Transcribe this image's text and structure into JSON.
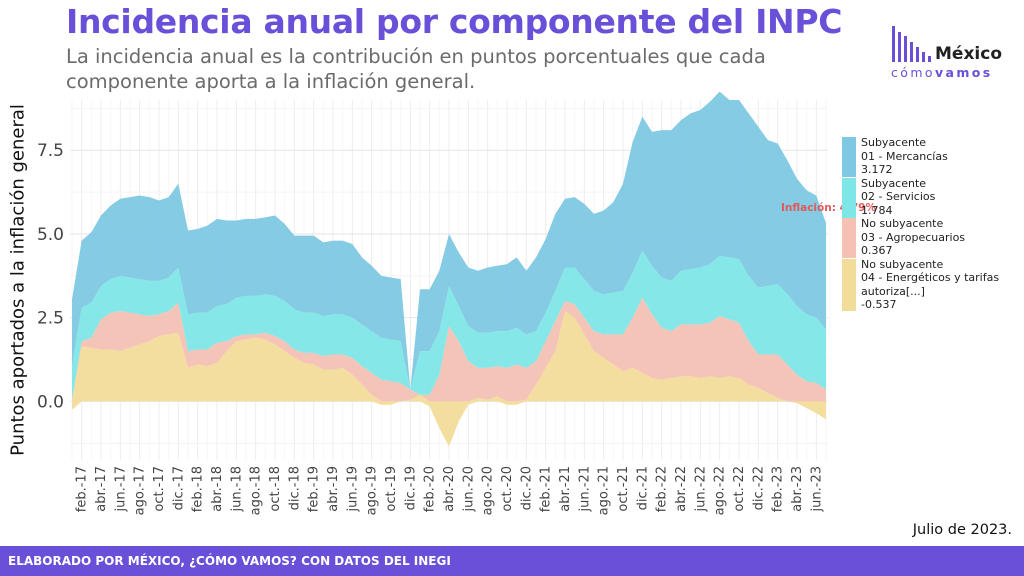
{
  "title": "Incidencia anual por componente del INPC",
  "subtitle": "La incidencia anual es la contribución en puntos porcentuales que cada componente aporta a la inflación general.",
  "logo": {
    "word": "México",
    "sub_a": "cómo",
    "sub_b": "vamos"
  },
  "date_note": "Julio de 2023.",
  "footer": "ELABORADO POR MÉXICO, ¿CÓMO VAMOS? CON DATOS DEL INEGI",
  "colors": {
    "brand": "#6a4fd8",
    "mercancias": "#7ec8e3",
    "servicios": "#7ee6e6",
    "agropecuarios": "#f4c1b4",
    "energeticos": "#f2dc9a",
    "annotation": "#e05a5a"
  },
  "legend": [
    {
      "line1": "Subyacente",
      "line2": "01 - Mercancías",
      "line3": "",
      "value": "3.172"
    },
    {
      "line1": "Subyacente",
      "line2": "02 - Servicios",
      "line3": "",
      "value": "1.784"
    },
    {
      "line1": "No subyacente",
      "line2": "03 - Agropecuarios",
      "line3": "",
      "value": "0.367"
    },
    {
      "line1": "No subyacente",
      "line2": "04 - Energéticos y tarifas",
      "line3": "autoriza[...]",
      "value": "-0.537"
    }
  ],
  "chart_data": {
    "type": "area",
    "ylabel": "Puntos aportados a la inflación general",
    "ylim": [
      -1.75,
      9.0
    ],
    "yticks": [
      0.0,
      2.5,
      5.0,
      7.5
    ],
    "ytick_labels": [
      "0.0",
      "2.5",
      "5.0",
      "7.5"
    ],
    "xtick_labels": [
      "feb.-17",
      "abr.-17",
      "jun.-17",
      "ago.-17",
      "oct.-17",
      "dic.-17",
      "feb.-18",
      "abr.-18",
      "jun.-18",
      "ago.-18",
      "oct.-18",
      "dic.-18",
      "feb.-19",
      "abr.-19",
      "jun.-19",
      "ago.-19",
      "oct.-19",
      "dic.-19",
      "feb.-20",
      "abr.-20",
      "jun.-20",
      "ago.-20",
      "oct.-20",
      "dic.-20",
      "feb.-21",
      "abr.-21",
      "jun.-21",
      "ago.-21",
      "oct.-21",
      "dic.-21",
      "feb.-22",
      "abr.-22",
      "jun.-22",
      "ago.-22",
      "oct.-22",
      "dic.-22",
      "feb.-23",
      "abr.-23",
      "jun.-23"
    ],
    "annotation": "Inflación: 4.79%",
    "grid": true,
    "legend_position": "right",
    "x": [
      "2017-01",
      "2017-02",
      "2017-03",
      "2017-04",
      "2017-05",
      "2017-06",
      "2017-07",
      "2017-08",
      "2017-09",
      "2017-10",
      "2017-11",
      "2017-12",
      "2018-01",
      "2018-02",
      "2018-03",
      "2018-04",
      "2018-05",
      "2018-06",
      "2018-07",
      "2018-08",
      "2018-09",
      "2018-10",
      "2018-11",
      "2018-12",
      "2019-01",
      "2019-02",
      "2019-03",
      "2019-04",
      "2019-05",
      "2019-06",
      "2019-07",
      "2019-08",
      "2019-09",
      "2019-10",
      "2019-11",
      "2019-12",
      "2020-01",
      "2020-02",
      "2020-03",
      "2020-04",
      "2020-05",
      "2020-06",
      "2020-07",
      "2020-08",
      "2020-09",
      "2020-10",
      "2020-11",
      "2020-12",
      "2021-01",
      "2021-02",
      "2021-03",
      "2021-04",
      "2021-05",
      "2021-06",
      "2021-07",
      "2021-08",
      "2021-09",
      "2021-10",
      "2021-11",
      "2021-12",
      "2022-01",
      "2022-02",
      "2022-03",
      "2022-04",
      "2022-05",
      "2022-06",
      "2022-07",
      "2022-08",
      "2022-09",
      "2022-10",
      "2022-11",
      "2022-12",
      "2023-01",
      "2023-02",
      "2023-03",
      "2023-04",
      "2023-05",
      "2023-06",
      "2023-07"
    ],
    "series": [
      {
        "name": "04 - Energéticos y tarifas autoriza[...]",
        "values": [
          -0.25,
          1.65,
          1.6,
          1.55,
          1.55,
          1.5,
          1.6,
          1.7,
          1.8,
          1.95,
          2.0,
          2.05,
          1.0,
          1.1,
          1.05,
          1.15,
          1.5,
          1.8,
          1.85,
          1.9,
          1.85,
          1.7,
          1.5,
          1.3,
          1.15,
          1.1,
          0.95,
          0.95,
          1.0,
          0.8,
          0.5,
          0.2,
          -0.1,
          -0.1,
          0.0,
          0.05,
          0.2,
          -0.15,
          -0.8,
          -1.35,
          -0.6,
          -0.1,
          0.1,
          0.05,
          0.15,
          -0.1,
          -0.1,
          0.05,
          0.5,
          1.0,
          1.5,
          2.7,
          2.5,
          2.0,
          1.5,
          1.3,
          1.1,
          0.9,
          1.0,
          0.85,
          0.7,
          0.65,
          0.7,
          0.75,
          0.75,
          0.7,
          0.75,
          0.7,
          0.75,
          0.7,
          0.5,
          0.4,
          0.25,
          0.1,
          0.0,
          -0.05,
          -0.2,
          -0.35,
          -0.537
        ]
      },
      {
        "name": "03 - Agropecuarios",
        "values": [
          0.05,
          0.15,
          0.3,
          0.9,
          1.1,
          1.2,
          1.05,
          0.9,
          0.75,
          0.65,
          0.7,
          0.9,
          0.5,
          0.45,
          0.5,
          0.6,
          0.3,
          0.15,
          0.15,
          0.1,
          0.2,
          0.25,
          0.3,
          0.25,
          0.3,
          0.35,
          0.4,
          0.45,
          0.4,
          0.5,
          0.55,
          0.65,
          0.65,
          0.6,
          0.55,
          0.3,
          0.0,
          0.2,
          0.8,
          2.25,
          1.8,
          1.2,
          0.9,
          0.95,
          0.9,
          1.0,
          1.1,
          0.95,
          0.7,
          0.8,
          0.9,
          0.3,
          0.4,
          0.5,
          0.6,
          0.7,
          0.9,
          1.1,
          1.5,
          2.25,
          1.9,
          1.55,
          1.4,
          1.55,
          1.55,
          1.6,
          1.6,
          1.85,
          1.7,
          1.65,
          1.3,
          1.0,
          1.15,
          1.3,
          1.1,
          0.8,
          0.6,
          0.55,
          0.367
        ]
      },
      {
        "name": "02 - Servicios",
        "values": [
          1.0,
          1.0,
          1.05,
          1.0,
          1.0,
          1.05,
          1.05,
          1.05,
          1.05,
          1.0,
          1.0,
          1.05,
          1.1,
          1.1,
          1.1,
          1.1,
          1.1,
          1.15,
          1.15,
          1.15,
          1.15,
          1.2,
          1.2,
          1.2,
          1.2,
          1.2,
          1.2,
          1.2,
          1.2,
          1.2,
          1.25,
          1.25,
          1.25,
          1.25,
          1.25,
          0.0,
          1.3,
          1.3,
          1.3,
          1.2,
          1.05,
          1.05,
          1.05,
          1.05,
          1.05,
          1.1,
          1.1,
          1.0,
          0.9,
          0.85,
          0.9,
          1.0,
          1.1,
          1.15,
          1.2,
          1.2,
          1.25,
          1.3,
          1.35,
          1.4,
          1.45,
          1.5,
          1.5,
          1.6,
          1.65,
          1.7,
          1.75,
          1.8,
          1.85,
          1.9,
          1.95,
          2.0,
          2.05,
          2.1,
          2.1,
          2.05,
          2.0,
          1.95,
          1.784
        ]
      },
      {
        "name": "01 - Mercancías",
        "values": [
          2.0,
          2.0,
          2.1,
          2.1,
          2.2,
          2.3,
          2.4,
          2.5,
          2.5,
          2.4,
          2.4,
          2.5,
          2.5,
          2.5,
          2.6,
          2.6,
          2.5,
          2.3,
          2.3,
          2.3,
          2.3,
          2.4,
          2.3,
          2.2,
          2.3,
          2.3,
          2.2,
          2.2,
          2.2,
          2.2,
          2.0,
          1.95,
          1.85,
          1.85,
          1.85,
          0.0,
          1.85,
          1.85,
          1.8,
          1.55,
          1.6,
          1.75,
          1.85,
          1.95,
          1.95,
          2.0,
          2.1,
          1.9,
          2.2,
          2.2,
          2.3,
          2.05,
          2.1,
          2.25,
          2.3,
          2.5,
          2.7,
          3.2,
          3.9,
          4.0,
          4.0,
          4.4,
          4.5,
          4.5,
          4.65,
          4.7,
          4.85,
          4.9,
          4.7,
          4.75,
          4.85,
          4.8,
          4.35,
          4.2,
          4.0,
          3.8,
          3.7,
          3.65,
          3.172
        ]
      }
    ]
  }
}
